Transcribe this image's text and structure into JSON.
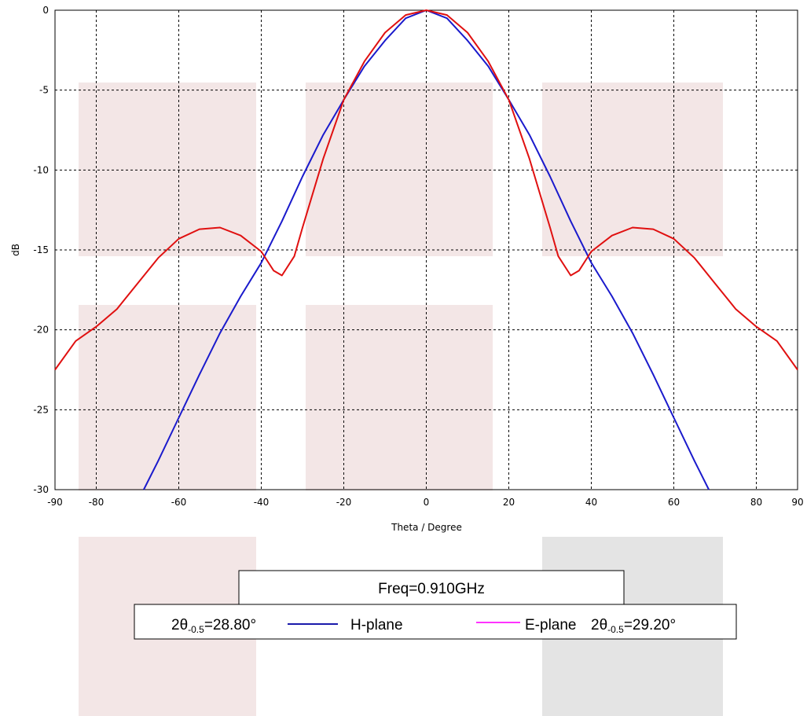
{
  "chart_data": {
    "type": "line",
    "title": "",
    "xlabel": "Theta / Degree",
    "ylabel": "dB",
    "xlim": [
      -90,
      90
    ],
    "ylim": [
      -30,
      0
    ],
    "x_ticks": [
      -90,
      -80,
      -60,
      -40,
      -20,
      0,
      20,
      40,
      60,
      80,
      90
    ],
    "y_ticks": [
      0,
      -5,
      -10,
      -15,
      -20,
      -25,
      -30
    ],
    "grid": true,
    "grid_style": "dotted",
    "series": [
      {
        "name": "H-plane",
        "color": "#1a1acc",
        "x": [
          -68.5,
          -65,
          -60,
          -55,
          -50,
          -45,
          -40,
          -35,
          -30,
          -25,
          -20,
          -15,
          -10,
          -5,
          0,
          5,
          10,
          15,
          20,
          25,
          30,
          35,
          40,
          45,
          50,
          55,
          60,
          65,
          68.5
        ],
        "y": [
          -30,
          -28.2,
          -25.5,
          -22.8,
          -20.2,
          -17.9,
          -15.8,
          -13.2,
          -10.4,
          -7.8,
          -5.6,
          -3.5,
          -1.9,
          -0.5,
          0,
          -0.5,
          -1.9,
          -3.5,
          -5.6,
          -7.8,
          -10.4,
          -13.2,
          -15.8,
          -17.9,
          -20.2,
          -22.8,
          -25.5,
          -28.2,
          -30
        ]
      },
      {
        "name": "E-plane",
        "color": "#e01010",
        "x": [
          -90,
          -85,
          -80,
          -75,
          -70,
          -65,
          -60,
          -55,
          -50,
          -45,
          -40,
          -37,
          -35,
          -32,
          -30,
          -25,
          -20,
          -15,
          -10,
          -5,
          0,
          5,
          10,
          15,
          20,
          25,
          30,
          32,
          35,
          37,
          40,
          45,
          50,
          55,
          60,
          65,
          70,
          75,
          80,
          85,
          90
        ],
        "y": [
          -22.5,
          -20.7,
          -19.8,
          -18.7,
          -17.1,
          -15.5,
          -14.3,
          -13.7,
          -13.6,
          -14.1,
          -15.1,
          -16.3,
          -16.6,
          -15.4,
          -13.6,
          -9.3,
          -5.6,
          -3.2,
          -1.4,
          -0.3,
          0,
          -0.3,
          -1.4,
          -3.2,
          -5.6,
          -9.3,
          -13.6,
          -15.4,
          -16.6,
          -16.3,
          -15.1,
          -14.1,
          -13.6,
          -13.7,
          -14.3,
          -15.5,
          -17.1,
          -18.7,
          -19.8,
          -20.7,
          -22.5
        ]
      }
    ]
  },
  "legend": {
    "freq_label": "Freq=0.910GHz",
    "h_plane_label": "H-plane",
    "e_plane_label": "E-plane",
    "h_beamwidth_prefix": "2θ",
    "h_beamwidth_sub": "-0.5",
    "h_beamwidth_value": "=28.80°",
    "e_beamwidth_prefix": "2θ",
    "e_beamwidth_sub": "-0.5",
    "e_beamwidth_value": "=29.20°",
    "h_line_color": "#1a1aaa",
    "e_line_color": "#ff33ff"
  }
}
